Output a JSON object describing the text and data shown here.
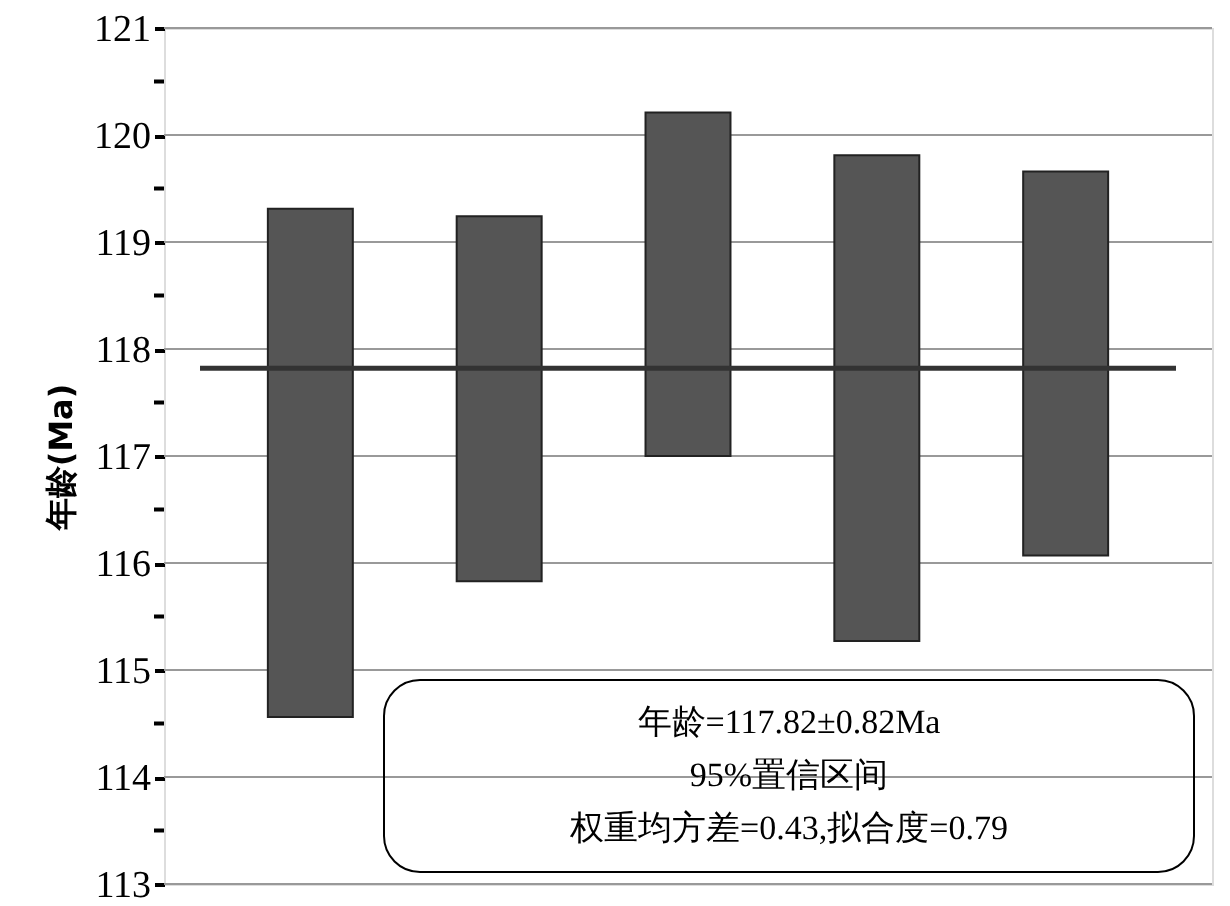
{
  "chart_data": {
    "type": "bar",
    "ylabel": "年龄(Ma)",
    "categories": [
      null,
      null,
      null,
      null,
      null
    ],
    "base": [
      114.56,
      115.83,
      117.0,
      115.27,
      116.07
    ],
    "values": [
      4.75,
      3.41,
      3.21,
      4.54,
      3.59
    ],
    "color": "#555555",
    "ylim": [
      113,
      121
    ],
    "yticks": [
      113,
      {
        "value": 113.5,
        "label": null
      },
      114,
      {
        "value": 114.5,
        "label": null
      },
      115,
      {
        "value": 115.5,
        "label": null
      },
      116,
      {
        "value": 116.5,
        "label": null
      },
      117,
      {
        "value": 117.5,
        "label": null
      },
      118,
      {
        "value": 118.5,
        "label": null
      },
      119,
      {
        "value": 119.5,
        "label": null
      },
      120,
      {
        "value": 120.5,
        "label": null
      },
      121
    ],
    "grid": "y",
    "tick_labels": "y",
    "ref_lines": [
      {
        "axis": "y",
        "value": 117.82,
        "color": "#333333"
      }
    ],
    "annotations": [
      "年龄=117.82±0.82Ma",
      "95%置信区间",
      "权重均方差=0.43,拟合度=0.79"
    ]
  }
}
